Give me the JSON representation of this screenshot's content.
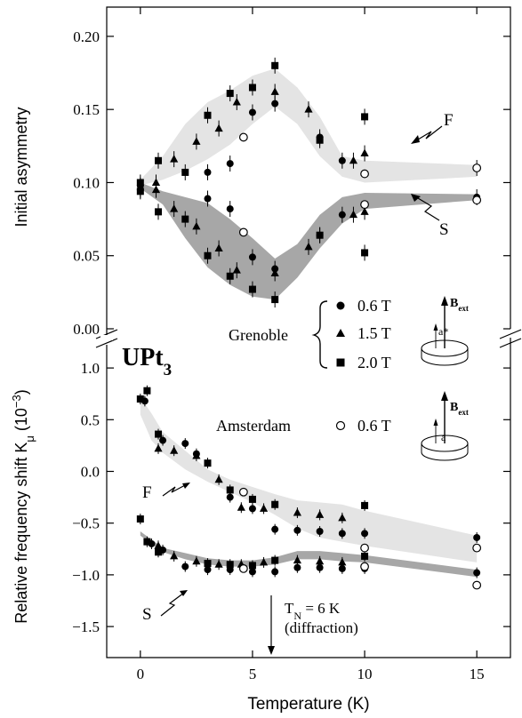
{
  "chart_data": [
    {
      "type": "scatter",
      "panel": "top",
      "ylabel": "Initial asymmetry",
      "ylim": [
        0,
        0.22
      ],
      "yticks": [
        "0.00",
        "0.05",
        "0.10",
        "0.15",
        "0.20"
      ],
      "ytick_values": [
        0,
        0.05,
        0.1,
        0.15,
        0.2
      ],
      "xlim": [
        -1.5,
        16.5
      ],
      "band_labels": [
        "F",
        "S"
      ],
      "bands": [
        {
          "name": "F",
          "color": "#e4e4e4",
          "x": [
            0,
            1,
            2,
            3,
            4,
            5,
            6,
            7,
            8,
            9,
            10,
            15
          ],
          "low": [
            0.098,
            0.102,
            0.108,
            0.116,
            0.126,
            0.14,
            0.152,
            0.14,
            0.118,
            0.104,
            0.1,
            0.104
          ],
          "high": [
            0.102,
            0.118,
            0.14,
            0.155,
            0.163,
            0.173,
            0.178,
            0.165,
            0.145,
            0.118,
            0.115,
            0.112
          ]
        },
        {
          "name": "S",
          "color": "#a7a7a7",
          "x": [
            0,
            1,
            2,
            3,
            4,
            5,
            6,
            7,
            8,
            9,
            10,
            15
          ],
          "low": [
            0.096,
            0.085,
            0.062,
            0.042,
            0.03,
            0.022,
            0.02,
            0.035,
            0.055,
            0.072,
            0.082,
            0.088
          ],
          "high": [
            0.1,
            0.094,
            0.09,
            0.086,
            0.075,
            0.062,
            0.048,
            0.058,
            0.078,
            0.09,
            0.093,
            0.092
          ]
        }
      ],
      "series": [
        {
          "name": "0.6 T",
          "marker": "circle",
          "facility": "Grenoble",
          "points": [
            [
              0,
              0.098
            ],
            [
              3,
              0.107
            ],
            [
              4,
              0.113
            ],
            [
              5,
              0.148
            ],
            [
              6,
              0.154
            ],
            [
              8,
              0.131
            ],
            [
              9,
              0.115
            ],
            [
              15,
              0.11
            ],
            [
              0,
              0.095
            ],
            [
              3,
              0.089
            ],
            [
              4,
              0.082
            ],
            [
              5,
              0.049
            ],
            [
              6,
              0.041
            ],
            [
              8,
              0.064
            ],
            [
              9,
              0.078
            ],
            [
              15,
              0.09
            ]
          ]
        },
        {
          "name": "1.5 T",
          "marker": "triangle",
          "facility": "Grenoble",
          "points": [
            [
              0.7,
              0.1
            ],
            [
              1.5,
              0.116
            ],
            [
              2.5,
              0.128
            ],
            [
              3.5,
              0.137
            ],
            [
              4.3,
              0.155
            ],
            [
              6,
              0.162
            ],
            [
              7.5,
              0.15
            ],
            [
              9.5,
              0.115
            ],
            [
              10,
              0.12
            ],
            [
              0.7,
              0.095
            ],
            [
              1.5,
              0.082
            ],
            [
              2.5,
              0.07
            ],
            [
              3.5,
              0.055
            ],
            [
              4.3,
              0.04
            ],
            [
              6,
              0.038
            ],
            [
              7.5,
              0.056
            ],
            [
              9.5,
              0.078
            ],
            [
              10,
              0.08
            ]
          ]
        },
        {
          "name": "2.0 T",
          "marker": "square",
          "facility": "Grenoble",
          "points": [
            [
              0,
              0.1
            ],
            [
              0.8,
              0.115
            ],
            [
              2,
              0.107
            ],
            [
              3,
              0.146
            ],
            [
              4,
              0.161
            ],
            [
              5,
              0.165
            ],
            [
              6,
              0.18
            ],
            [
              8,
              0.129
            ],
            [
              10,
              0.145
            ],
            [
              0,
              0.094
            ],
            [
              0.8,
              0.08
            ],
            [
              2,
              0.075
            ],
            [
              3,
              0.05
            ],
            [
              4,
              0.036
            ],
            [
              5,
              0.027
            ],
            [
              6,
              0.02
            ],
            [
              8,
              0.064
            ],
            [
              10,
              0.052
            ]
          ]
        },
        {
          "name": "0.6 T",
          "marker": "open-circle",
          "facility": "Amsterdam",
          "points": [
            [
              4.6,
              0.131
            ],
            [
              10,
              0.106
            ],
            [
              15,
              0.11
            ],
            [
              4.6,
              0.066
            ],
            [
              10,
              0.085
            ],
            [
              15,
              0.088
            ]
          ]
        }
      ]
    },
    {
      "type": "scatter",
      "panel": "bottom",
      "title": "UPt",
      "title_sub": "3",
      "ylabel_main": "Relative frequency shift K",
      "ylabel_sub": "μ",
      "ylabel_unit": " (10",
      "ylabel_sup": "−3",
      "ylabel_close": ")",
      "xlabel": "Temperature (K)",
      "ylim": [
        -1.8,
        1.25
      ],
      "yticks": [
        "−1.5",
        "−1.0",
        "−0.5",
        "0.0",
        "0.5",
        "1.0"
      ],
      "ytick_values": [
        -1.5,
        -1.0,
        -0.5,
        0.0,
        0.5,
        1.0
      ],
      "xlim": [
        -1.5,
        16.5
      ],
      "xticks": [
        "0",
        "5",
        "10",
        "15"
      ],
      "xtick_values": [
        0,
        5,
        10,
        15
      ],
      "band_labels": [
        "F",
        "S"
      ],
      "bands": [
        {
          "name": "F",
          "color": "#e4e4e4",
          "x": [
            0,
            0.5,
            1,
            2,
            3,
            4,
            5,
            6,
            7,
            8,
            9,
            10,
            15
          ],
          "low": [
            0.55,
            0.3,
            0.18,
            0.02,
            -0.1,
            -0.2,
            -0.3,
            -0.42,
            -0.55,
            -0.64,
            -0.68,
            -0.72,
            -0.88
          ],
          "high": [
            0.72,
            0.56,
            0.38,
            0.2,
            0.02,
            -0.08,
            -0.15,
            -0.22,
            -0.28,
            -0.3,
            -0.32,
            -0.38,
            -0.62
          ]
        },
        {
          "name": "S",
          "color": "#a7a7a7",
          "x": [
            0,
            0.5,
            1,
            2,
            3,
            4,
            5,
            6,
            7,
            8,
            9,
            10,
            15
          ],
          "low": [
            -0.62,
            -0.7,
            -0.78,
            -0.85,
            -0.9,
            -0.92,
            -0.92,
            -0.9,
            -0.85,
            -0.85,
            -0.87,
            -0.88,
            -1.02
          ],
          "high": [
            -0.58,
            -0.66,
            -0.74,
            -0.79,
            -0.84,
            -0.86,
            -0.86,
            -0.83,
            -0.77,
            -0.77,
            -0.79,
            -0.81,
            -0.95
          ]
        }
      ],
      "series": [
        {
          "name": "0.6 T",
          "marker": "circle",
          "facility": "Grenoble",
          "points": [
            [
              0.2,
              0.68
            ],
            [
              1,
              0.3
            ],
            [
              2,
              0.27
            ],
            [
              2.5,
              0.17
            ],
            [
              4,
              -0.25
            ],
            [
              5,
              -0.36
            ],
            [
              6,
              -0.56
            ],
            [
              7,
              -0.57
            ],
            [
              8,
              -0.58
            ],
            [
              9,
              -0.6
            ],
            [
              10,
              -0.6
            ],
            [
              15,
              -0.64
            ],
            [
              0.5,
              -0.7
            ],
            [
              1,
              -0.76
            ],
            [
              2,
              -0.92
            ],
            [
              3,
              -0.95
            ],
            [
              4,
              -0.95
            ],
            [
              5,
              -0.97
            ],
            [
              6,
              -0.97
            ],
            [
              7,
              -0.93
            ],
            [
              8,
              -0.93
            ],
            [
              9,
              -0.94
            ],
            [
              10,
              -0.94
            ],
            [
              15,
              -0.98
            ]
          ]
        },
        {
          "name": "1.5 T",
          "marker": "triangle",
          "facility": "Grenoble",
          "points": [
            [
              0.8,
              0.22
            ],
            [
              1.5,
              0.2
            ],
            [
              2.5,
              0.15
            ],
            [
              3.5,
              -0.08
            ],
            [
              4.5,
              -0.35
            ],
            [
              5.5,
              -0.36
            ],
            [
              7,
              -0.4
            ],
            [
              8,
              -0.42
            ],
            [
              9,
              -0.45
            ],
            [
              0.8,
              -0.72
            ],
            [
              1.5,
              -0.82
            ],
            [
              2.5,
              -0.87
            ],
            [
              3.5,
              -0.9
            ],
            [
              4.5,
              -0.9
            ],
            [
              5.5,
              -0.88
            ],
            [
              7,
              -0.86
            ],
            [
              8,
              -0.87
            ],
            [
              9,
              -0.88
            ]
          ]
        },
        {
          "name": "2.0 T",
          "marker": "square",
          "facility": "Grenoble",
          "points": [
            [
              0,
              0.7
            ],
            [
              0.3,
              0.78
            ],
            [
              0.8,
              0.36
            ],
            [
              3,
              0.08
            ],
            [
              4,
              -0.18
            ],
            [
              5,
              -0.27
            ],
            [
              6,
              -0.32
            ],
            [
              10,
              -0.33
            ],
            [
              0,
              -0.46
            ],
            [
              0.3,
              -0.68
            ],
            [
              0.8,
              -0.78
            ],
            [
              3,
              -0.89
            ],
            [
              4,
              -0.9
            ],
            [
              5,
              -0.91
            ],
            [
              6,
              -0.86
            ],
            [
              10,
              -0.82
            ]
          ]
        },
        {
          "name": "0.6 T",
          "marker": "open-circle",
          "facility": "Amsterdam",
          "points": [
            [
              4.6,
              -0.2
            ],
            [
              10,
              -0.74
            ],
            [
              15,
              -0.74
            ],
            [
              4.6,
              -0.94
            ],
            [
              10,
              -0.92
            ],
            [
              15,
              -1.1
            ]
          ]
        }
      ],
      "annotation_lines": [
        "T",
        "N",
        " = 6 K",
        "(diffraction)"
      ]
    }
  ],
  "legend": {
    "grenoble_label": "Grenoble",
    "amsterdam_label": "Amsterdam",
    "entries": [
      "0.6 T",
      "1.5 T",
      "2.0 T",
      "0.6 T"
    ],
    "field_label_main": "B",
    "field_label_sub": "ext",
    "axis_label_grenoble": "a*",
    "axis_label_amsterdam": "a"
  }
}
